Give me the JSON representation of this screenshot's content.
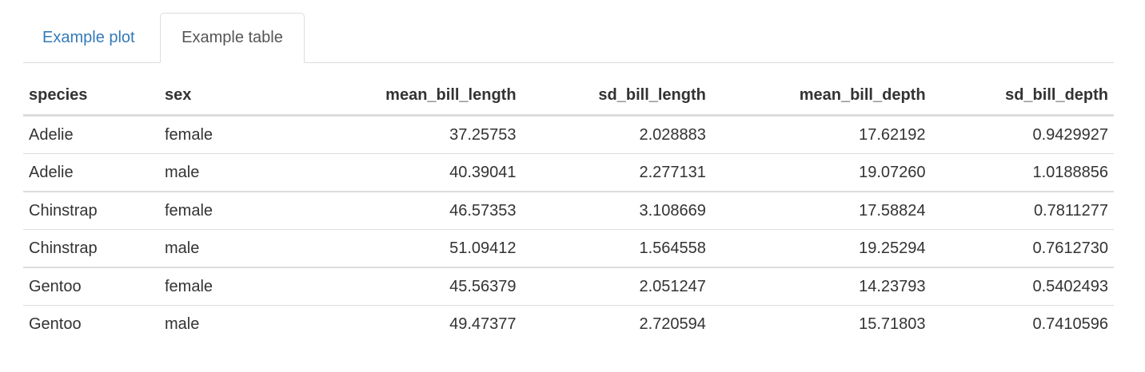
{
  "tabs": [
    {
      "label": "Example plot",
      "active": false
    },
    {
      "label": "Example table",
      "active": true
    }
  ],
  "table": {
    "headers": [
      "species",
      "sex",
      "mean_bill_length",
      "sd_bill_length",
      "mean_bill_depth",
      "sd_bill_depth"
    ],
    "rows": [
      [
        "Adelie",
        "female",
        "37.25753",
        "2.028883",
        "17.62192",
        "0.9429927"
      ],
      [
        "Adelie",
        "male",
        "40.39041",
        "2.277131",
        "19.07260",
        "1.0188856"
      ],
      [
        "Chinstrap",
        "female",
        "46.57353",
        "3.108669",
        "17.58824",
        "0.7811277"
      ],
      [
        "Chinstrap",
        "male",
        "51.09412",
        "1.564558",
        "19.25294",
        "0.7612730"
      ],
      [
        "Gentoo",
        "female",
        "45.56379",
        "2.051247",
        "14.23793",
        "0.5402493"
      ],
      [
        "Gentoo",
        "male",
        "49.47377",
        "2.720594",
        "15.71803",
        "0.7410596"
      ]
    ]
  },
  "colors": {
    "link": "#337ab7",
    "active_tab_text": "#555555",
    "border": "#dddddd",
    "text": "#333333"
  }
}
